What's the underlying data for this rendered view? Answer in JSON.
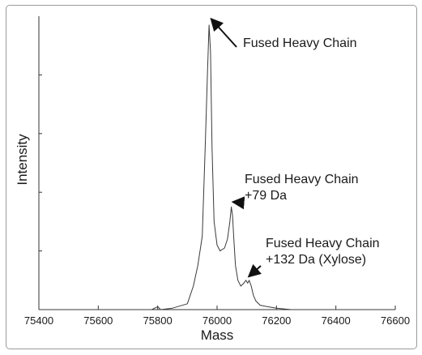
{
  "chart_data": {
    "type": "line",
    "title": "",
    "xlabel": "Mass",
    "ylabel": "Intensity",
    "xlim": [
      75400,
      76600
    ],
    "xticks": [
      "75400",
      "75600",
      "75800",
      "76000",
      "76200",
      "76400",
      "76600"
    ],
    "ylim": [
      0,
      1.0
    ],
    "y_tick_labels_shown": false,
    "grid": false,
    "series": [
      {
        "x": [
          75400,
          75780,
          75800,
          75810,
          75850,
          75900,
          75920,
          75935,
          75950,
          75960,
          75968,
          75973,
          75978,
          75983,
          75990,
          76000,
          76010,
          76025,
          76035,
          76043,
          76048,
          76052,
          76056,
          76062,
          76070,
          76080,
          76090,
          76097,
          76103,
          76108,
          76115,
          76122,
          76130,
          76145,
          76170,
          76200,
          76250,
          76600
        ],
        "y": [
          0,
          0,
          0.01,
          0,
          0.005,
          0.02,
          0.08,
          0.15,
          0.25,
          0.55,
          0.82,
          0.97,
          0.88,
          0.55,
          0.3,
          0.22,
          0.2,
          0.21,
          0.24,
          0.3,
          0.35,
          0.32,
          0.25,
          0.15,
          0.1,
          0.08,
          0.09,
          0.1,
          0.09,
          0.1,
          0.08,
          0.05,
          0.03,
          0.015,
          0.01,
          0.005,
          0,
          0
        ]
      }
    ],
    "annotations": [
      {
        "lines": [
          "Fused Heavy Chain"
        ],
        "x": 75973,
        "y": 0.97
      },
      {
        "lines": [
          "Fused Heavy Chain",
          "+79 Da"
        ],
        "x": 76048,
        "y": 0.35
      },
      {
        "lines": [
          "Fused Heavy Chain",
          "+132 Da (Xylose)"
        ],
        "x": 76100,
        "y": 0.1
      }
    ],
    "colors": {
      "line": "#3a3a3a",
      "axis": "#333333",
      "frame": "#9a9a9a"
    }
  }
}
